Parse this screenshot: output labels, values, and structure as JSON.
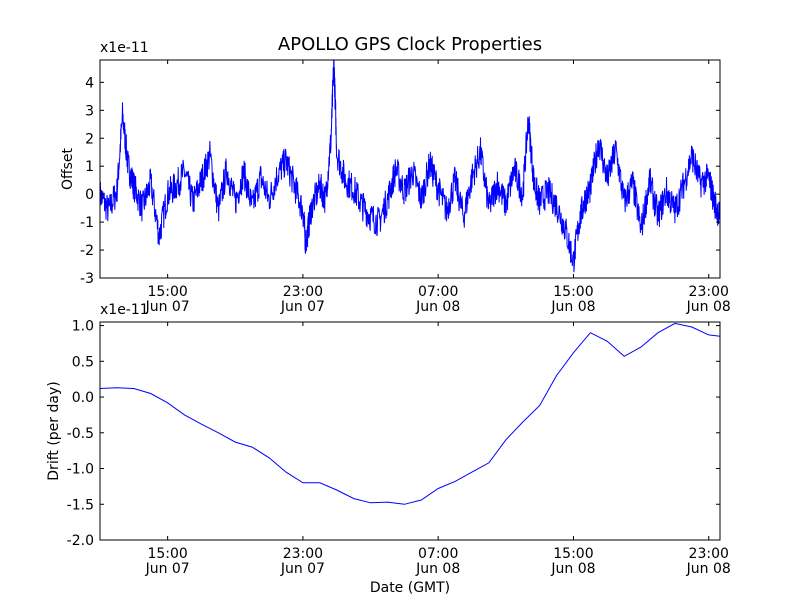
{
  "figure": {
    "title": "APOLLO GPS Clock Properties",
    "line_color": "#0000ff"
  },
  "chart_data": [
    {
      "type": "line",
      "title": "APOLLO GPS Clock Properties",
      "ylabel": "Offset",
      "xlabel": "",
      "offset_text": "x1e-11",
      "ylim": [
        -3,
        4.8
      ],
      "y_ticks": [
        -3,
        -2,
        -1,
        0,
        1,
        2,
        3,
        4
      ],
      "y_tick_labels": [
        "-3",
        "-2",
        "-1",
        "0",
        "1",
        "2",
        "3",
        "4"
      ],
      "xlim": [
        "2012-06-07T11:00",
        "2012-06-08T23:40"
      ],
      "x_ticks": [
        {
          "x": "2012-06-07T15:00",
          "time": "15:00",
          "date": "Jun 07"
        },
        {
          "x": "2012-06-07T23:00",
          "time": "23:00",
          "date": "Jun 07"
        },
        {
          "x": "2012-06-08T07:00",
          "time": "07:00",
          "date": "Jun 08"
        },
        {
          "x": "2012-06-08T15:00",
          "time": "15:00",
          "date": "Jun 08"
        },
        {
          "x": "2012-06-08T23:00",
          "time": "23:00",
          "date": "Jun 08"
        }
      ],
      "grid": false,
      "series": [
        {
          "points": [
            [
              "2012-06-07T11:00",
              0.0
            ],
            [
              "2012-06-07T11:30",
              -0.6
            ],
            [
              "2012-06-07T12:00",
              0.1
            ],
            [
              "2012-06-07T12:20",
              2.8
            ],
            [
              "2012-06-07T12:40",
              1.0
            ],
            [
              "2012-06-07T13:00",
              0.3
            ],
            [
              "2012-06-07T13:30",
              -0.5
            ],
            [
              "2012-06-07T14:00",
              0.4
            ],
            [
              "2012-06-07T14:30",
              -1.5
            ],
            [
              "2012-06-07T15:00",
              0.0
            ],
            [
              "2012-06-07T15:30",
              0.3
            ],
            [
              "2012-06-07T16:00",
              0.8
            ],
            [
              "2012-06-07T16:30",
              -0.3
            ],
            [
              "2012-06-07T17:00",
              0.5
            ],
            [
              "2012-06-07T17:30",
              1.4
            ],
            [
              "2012-06-07T18:00",
              -0.6
            ],
            [
              "2012-06-07T18:30",
              0.9
            ],
            [
              "2012-06-07T19:00",
              -0.3
            ],
            [
              "2012-06-07T19:30",
              0.8
            ],
            [
              "2012-06-07T20:00",
              -0.5
            ],
            [
              "2012-06-07T20:30",
              0.6
            ],
            [
              "2012-06-07T21:00",
              -0.2
            ],
            [
              "2012-06-07T21:30",
              0.7
            ],
            [
              "2012-06-07T22:00",
              1.2
            ],
            [
              "2012-06-07T22:30",
              0.3
            ],
            [
              "2012-06-07T23:00",
              -0.6
            ],
            [
              "2012-06-07T23:10",
              -1.8
            ],
            [
              "2012-06-07T23:30",
              -0.5
            ],
            [
              "2012-06-08T00:00",
              0.3
            ],
            [
              "2012-06-08T00:20",
              -0.2
            ],
            [
              "2012-06-08T00:40",
              2.0
            ],
            [
              "2012-06-08T00:50",
              4.8
            ],
            [
              "2012-06-08T01:00",
              1.5
            ],
            [
              "2012-06-08T01:30",
              0.5
            ],
            [
              "2012-06-08T02:00",
              0.2
            ],
            [
              "2012-06-08T02:30",
              -0.4
            ],
            [
              "2012-06-08T03:00",
              -0.8
            ],
            [
              "2012-06-08T03:30",
              -1.0
            ],
            [
              "2012-06-08T04:00",
              -0.2
            ],
            [
              "2012-06-08T04:30",
              0.9
            ],
            [
              "2012-06-08T05:00",
              0.1
            ],
            [
              "2012-06-08T05:30",
              0.8
            ],
            [
              "2012-06-08T06:00",
              -0.2
            ],
            [
              "2012-06-08T06:30",
              1.1
            ],
            [
              "2012-06-08T07:00",
              0.2
            ],
            [
              "2012-06-08T07:30",
              -0.6
            ],
            [
              "2012-06-08T08:00",
              0.5
            ],
            [
              "2012-06-08T08:30",
              -0.8
            ],
            [
              "2012-06-08T09:00",
              0.6
            ],
            [
              "2012-06-08T09:30",
              1.5
            ],
            [
              "2012-06-08T10:00",
              -0.5
            ],
            [
              "2012-06-08T10:30",
              0.4
            ],
            [
              "2012-06-08T11:00",
              -0.4
            ],
            [
              "2012-06-08T11:30",
              0.9
            ],
            [
              "2012-06-08T12:00",
              0.0
            ],
            [
              "2012-06-08T12:20",
              2.7
            ],
            [
              "2012-06-08T12:40",
              0.4
            ],
            [
              "2012-06-08T13:00",
              -0.3
            ],
            [
              "2012-06-08T13:30",
              0.1
            ],
            [
              "2012-06-08T14:00",
              -0.4
            ],
            [
              "2012-06-08T14:30",
              -1.2
            ],
            [
              "2012-06-08T15:00",
              -2.4
            ],
            [
              "2012-06-08T15:20",
              -1.0
            ],
            [
              "2012-06-08T15:40",
              -0.2
            ],
            [
              "2012-06-08T16:00",
              0.2
            ],
            [
              "2012-06-08T16:30",
              1.9
            ],
            [
              "2012-06-08T17:00",
              0.5
            ],
            [
              "2012-06-08T17:30",
              1.6
            ],
            [
              "2012-06-08T18:00",
              -0.3
            ],
            [
              "2012-06-08T18:30",
              0.4
            ],
            [
              "2012-06-08T19:00",
              -1.3
            ],
            [
              "2012-06-08T19:30",
              0.5
            ],
            [
              "2012-06-08T20:00",
              -0.8
            ],
            [
              "2012-06-08T20:30",
              0.1
            ],
            [
              "2012-06-08T21:00",
              -0.6
            ],
            [
              "2012-06-08T21:30",
              0.3
            ],
            [
              "2012-06-08T22:00",
              1.4
            ],
            [
              "2012-06-08T22:30",
              0.4
            ],
            [
              "2012-06-08T23:00",
              0.6
            ],
            [
              "2012-06-08T23:20",
              -0.3
            ],
            [
              "2012-06-08T23:40",
              -0.8
            ]
          ]
        }
      ]
    },
    {
      "type": "line",
      "title": "",
      "ylabel": "Drift (per day)",
      "xlabel": "Date (GMT)",
      "offset_text": "x1e-11",
      "ylim": [
        -2.0,
        1.05
      ],
      "y_ticks": [
        -2.0,
        -1.5,
        -1.0,
        -0.5,
        0.0,
        0.5,
        1.0
      ],
      "y_tick_labels": [
        "-2.0",
        "-1.5",
        "-1.0",
        "-0.5",
        "0.0",
        "0.5",
        "1.0"
      ],
      "xlim": [
        "2012-06-07T11:00",
        "2012-06-08T23:40"
      ],
      "x_ticks": [
        {
          "x": "2012-06-07T15:00",
          "time": "15:00",
          "date": "Jun 07"
        },
        {
          "x": "2012-06-07T23:00",
          "time": "23:00",
          "date": "Jun 07"
        },
        {
          "x": "2012-06-08T07:00",
          "time": "07:00",
          "date": "Jun 08"
        },
        {
          "x": "2012-06-08T15:00",
          "time": "15:00",
          "date": "Jun 08"
        },
        {
          "x": "2012-06-08T23:00",
          "time": "23:00",
          "date": "Jun 08"
        }
      ],
      "grid": false,
      "series": [
        {
          "points": [
            [
              "2012-06-07T11:00",
              0.12
            ],
            [
              "2012-06-07T12:00",
              0.13
            ],
            [
              "2012-06-07T13:00",
              0.12
            ],
            [
              "2012-06-07T14:00",
              0.05
            ],
            [
              "2012-06-07T15:00",
              -0.08
            ],
            [
              "2012-06-07T16:00",
              -0.25
            ],
            [
              "2012-06-07T17:00",
              -0.38
            ],
            [
              "2012-06-07T18:00",
              -0.5
            ],
            [
              "2012-06-07T19:00",
              -0.63
            ],
            [
              "2012-06-07T20:00",
              -0.7
            ],
            [
              "2012-06-07T21:00",
              -0.85
            ],
            [
              "2012-06-07T22:00",
              -1.05
            ],
            [
              "2012-06-07T23:00",
              -1.2
            ],
            [
              "2012-06-08T00:00",
              -1.2
            ],
            [
              "2012-06-08T01:00",
              -1.3
            ],
            [
              "2012-06-08T02:00",
              -1.42
            ],
            [
              "2012-06-08T03:00",
              -1.48
            ],
            [
              "2012-06-08T04:00",
              -1.47
            ],
            [
              "2012-06-08T05:00",
              -1.5
            ],
            [
              "2012-06-08T06:00",
              -1.44
            ],
            [
              "2012-06-08T07:00",
              -1.28
            ],
            [
              "2012-06-08T08:00",
              -1.18
            ],
            [
              "2012-06-08T09:00",
              -1.05
            ],
            [
              "2012-06-08T10:00",
              -0.92
            ],
            [
              "2012-06-08T11:00",
              -0.6
            ],
            [
              "2012-06-08T12:00",
              -0.35
            ],
            [
              "2012-06-08T13:00",
              -0.12
            ],
            [
              "2012-06-08T14:00",
              0.3
            ],
            [
              "2012-06-08T15:00",
              0.62
            ],
            [
              "2012-06-08T16:00",
              0.9
            ],
            [
              "2012-06-08T17:00",
              0.78
            ],
            [
              "2012-06-08T18:00",
              0.57
            ],
            [
              "2012-06-08T19:00",
              0.7
            ],
            [
              "2012-06-08T20:00",
              0.9
            ],
            [
              "2012-06-08T21:00",
              1.03
            ],
            [
              "2012-06-08T22:00",
              0.98
            ],
            [
              "2012-06-08T23:00",
              0.87
            ],
            [
              "2012-06-08T23:40",
              0.85
            ]
          ]
        }
      ]
    }
  ]
}
